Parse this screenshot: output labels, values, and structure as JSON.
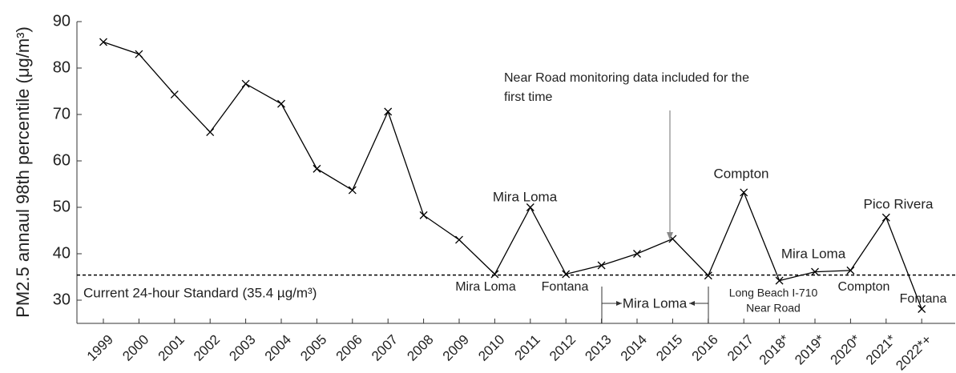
{
  "chart_data": {
    "type": "line",
    "y_label": "PM2.5 annaul 98th percentile (μg/m³)",
    "categories": [
      "1999",
      "2000",
      "2001",
      "2002",
      "2003",
      "2004",
      "2005",
      "2006",
      "2007",
      "2008",
      "2009",
      "2010",
      "2011",
      "2012",
      "2013",
      "2014",
      "2015",
      "2016",
      "2017",
      "2018*",
      "2019*",
      "2020*",
      "2021*",
      "2022*+"
    ],
    "values": [
      85.6,
      83.0,
      74.3,
      66.2,
      76.6,
      72.3,
      58.3,
      53.7,
      70.6,
      48.3,
      43.0,
      35.6,
      50.0,
      35.6,
      37.5,
      40.0,
      43.2,
      35.3,
      53.2,
      34.2,
      36.1,
      36.4,
      47.8,
      28.1
    ],
    "color": "#000000",
    "ylim": [
      25,
      90
    ],
    "yticks": [
      30,
      40,
      50,
      60,
      70,
      80,
      90
    ],
    "standard": {
      "value": 35.4,
      "label": "Current 24-hour Standard (35.4 µg/m³)"
    },
    "annotations": [
      "Near Road monitoring data included for the",
      "first time",
      "Mira Loma",
      "Compton",
      "Mira Loma",
      "Pico Rivera",
      "Mira Loma",
      "Fontana",
      "Mira Loma",
      "Long Beach I-710",
      "Near Road",
      "Compton",
      "Fontana"
    ]
  }
}
